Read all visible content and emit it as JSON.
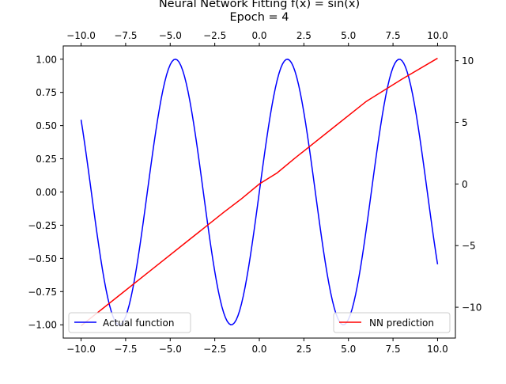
{
  "chart_data": {
    "type": "line",
    "title_lines": [
      "Neural Network Fitting f(x) = sin(x)",
      "Epoch = 4"
    ],
    "xlabel": "",
    "ylabel_left": "",
    "ylabel_right": "",
    "xlim": [
      -11.0,
      11.0
    ],
    "ylim_left": [
      -1.1,
      1.1
    ],
    "ylim_right": [
      -12.5,
      11.2
    ],
    "x_ticks": [
      -10.0,
      -7.5,
      -5.0,
      -2.5,
      0.0,
      2.5,
      5.0,
      7.5,
      10.0
    ],
    "x_tick_labels": [
      "−10.0",
      "−7.5",
      "−5.0",
      "−2.5",
      "0.0",
      "2.5",
      "5.0",
      "7.5",
      "10.0"
    ],
    "y_left_ticks": [
      -1.0,
      -0.75,
      -0.5,
      -0.25,
      0.0,
      0.25,
      0.5,
      0.75,
      1.0
    ],
    "y_left_tick_labels": [
      "−1.00",
      "−0.75",
      "−0.50",
      "−0.25",
      "0.00",
      "0.25",
      "0.50",
      "0.75",
      "1.00"
    ],
    "y_right_ticks": [
      -10,
      -5,
      0,
      5,
      10
    ],
    "y_right_tick_labels": [
      "−10",
      "−5",
      "0",
      "5",
      "10"
    ],
    "grid": false,
    "series": [
      {
        "name": "Actual function",
        "axis": "left",
        "color": "#0000ff",
        "x": [
          -10.0,
          -9.5,
          -9.0,
          -8.5,
          -8.0,
          -7.5,
          -7.0,
          -6.5,
          -6.0,
          -5.5,
          -5.0,
          -4.5,
          -4.0,
          -3.5,
          -3.0,
          -2.5,
          -2.0,
          -1.5,
          -1.0,
          -0.5,
          0.0,
          0.5,
          1.0,
          1.5,
          2.0,
          2.5,
          3.0,
          3.5,
          4.0,
          4.5,
          5.0,
          5.5,
          6.0,
          6.5,
          7.0,
          7.5,
          8.0,
          8.5,
          9.0,
          9.5,
          10.0
        ],
        "y": [
          0.544,
          0.075,
          -0.412,
          -0.798,
          -0.989,
          -0.938,
          -0.657,
          -0.215,
          0.279,
          0.706,
          0.959,
          0.978,
          0.757,
          0.351,
          -0.141,
          -0.598,
          -0.909,
          -0.997,
          -0.841,
          -0.479,
          0.0,
          0.479,
          0.841,
          0.997,
          0.909,
          0.598,
          0.141,
          -0.351,
          -0.757,
          -0.978,
          -0.959,
          -0.706,
          -0.279,
          0.215,
          0.657,
          0.938,
          0.989,
          0.798,
          0.412,
          -0.075,
          -0.544
        ]
      },
      {
        "name": "NN prediction",
        "axis": "right",
        "color": "#ff0000",
        "x": [
          -10.0,
          -8.0,
          -6.0,
          -4.0,
          -2.0,
          -1.0,
          0.0,
          1.0,
          2.0,
          4.0,
          6.0,
          8.0,
          10.0
        ],
        "y": [
          -11.5,
          -9.2,
          -6.9,
          -4.6,
          -2.3,
          -1.2,
          0.0,
          0.9,
          2.1,
          4.4,
          6.7,
          8.5,
          10.2
        ]
      }
    ],
    "legends": [
      {
        "position": "lower-left",
        "label": "Actual function",
        "color": "#0000ff"
      },
      {
        "position": "lower-right",
        "label": "NN prediction",
        "color": "#ff0000"
      }
    ]
  }
}
